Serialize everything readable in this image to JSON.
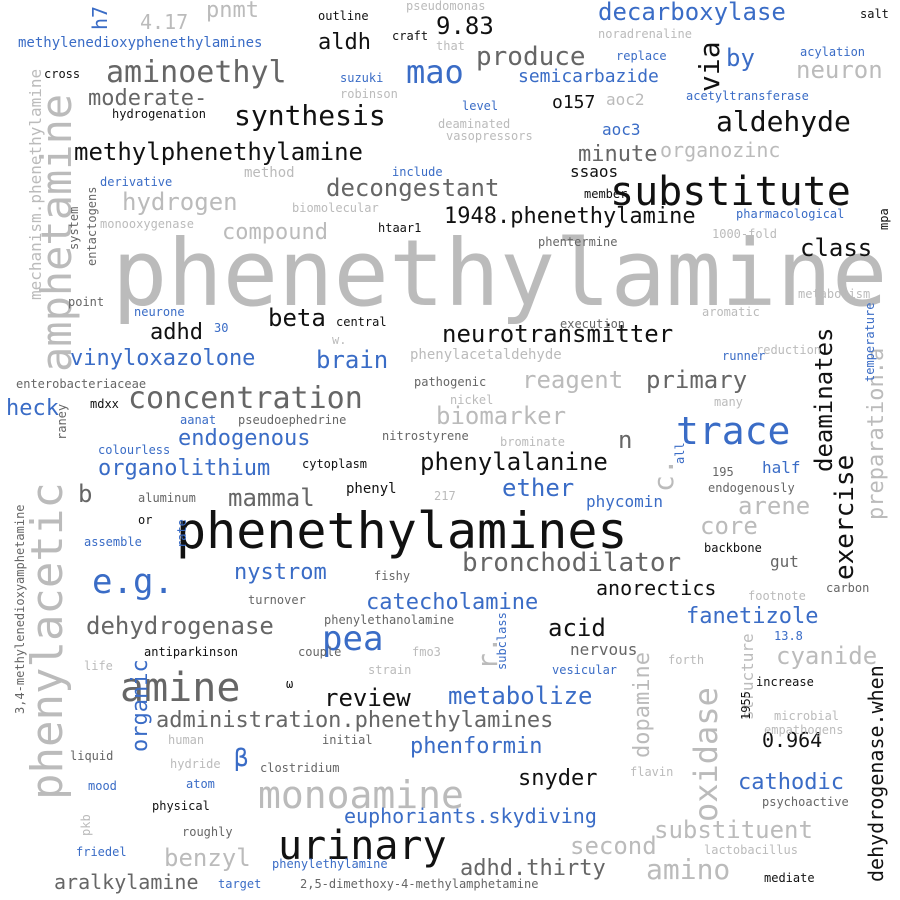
{
  "palette": {
    "black": "#111111",
    "dark": "#666666",
    "light": "#bbbbbb",
    "blue": "#3a6cc6"
  },
  "words": [
    {
      "t": "phenethylamine",
      "c": "light"
    },
    {
      "t": "phenethylamines",
      "c": "black"
    },
    {
      "t": "amphetamine",
      "c": "light"
    },
    {
      "t": "phenylacetic",
      "c": "light"
    },
    {
      "t": "substitute",
      "c": "black"
    },
    {
      "t": "amine",
      "c": "dark"
    },
    {
      "t": "monoamine",
      "c": "light"
    },
    {
      "t": "urinary",
      "c": "black"
    },
    {
      "t": "trace",
      "c": "blue"
    },
    {
      "t": "concentration",
      "c": "dark"
    },
    {
      "t": "e.g.",
      "c": "blue"
    },
    {
      "t": "pea",
      "c": "blue"
    },
    {
      "t": "oxidase",
      "c": "light"
    },
    {
      "t": "aminoethyl",
      "c": "dark"
    },
    {
      "t": "mao",
      "c": "blue"
    },
    {
      "t": "synthesis",
      "c": "black"
    },
    {
      "t": "methylphenethylamine",
      "c": "black"
    },
    {
      "t": "aldehyde",
      "c": "black"
    },
    {
      "t": "neurotransmitter",
      "c": "black"
    },
    {
      "t": "bronchodilator",
      "c": "dark"
    },
    {
      "t": "exercise",
      "c": "black"
    },
    {
      "t": "deaminates",
      "c": "black"
    },
    {
      "t": "decarboxylase",
      "c": "blue"
    },
    {
      "t": "produce",
      "c": "dark"
    },
    {
      "t": "decongestant",
      "c": "dark"
    },
    {
      "t": "hydrogen",
      "c": "light"
    },
    {
      "t": "compound",
      "c": "light"
    },
    {
      "t": "1948.phenethylamine",
      "c": "black"
    },
    {
      "t": "class",
      "c": "black"
    },
    {
      "t": "adhd",
      "c": "black"
    },
    {
      "t": "beta",
      "c": "black"
    },
    {
      "t": "brain",
      "c": "blue"
    },
    {
      "t": "vinyloxazolone",
      "c": "blue"
    },
    {
      "t": "reagent",
      "c": "light"
    },
    {
      "t": "primary",
      "c": "dark"
    },
    {
      "t": "biomarker",
      "c": "light"
    },
    {
      "t": "endogenous",
      "c": "blue"
    },
    {
      "t": "organolithium",
      "c": "blue"
    },
    {
      "t": "phenylalanine",
      "c": "black"
    },
    {
      "t": "ether",
      "c": "blue"
    },
    {
      "t": "mammal",
      "c": "dark"
    },
    {
      "t": "b",
      "c": "dark"
    },
    {
      "t": "n",
      "c": "dark"
    },
    {
      "t": "arene",
      "c": "light"
    },
    {
      "t": "core",
      "c": "light"
    },
    {
      "t": "heck",
      "c": "blue"
    },
    {
      "t": "catecholamine",
      "c": "blue"
    },
    {
      "t": "nystrom",
      "c": "blue"
    },
    {
      "t": "dehydrogenase",
      "c": "dark"
    },
    {
      "t": "acid",
      "c": "black"
    },
    {
      "t": "review",
      "c": "black"
    },
    {
      "t": "metabolize",
      "c": "blue"
    },
    {
      "t": "administration.phenethylamines",
      "c": "dark"
    },
    {
      "t": "phenformin",
      "c": "blue"
    },
    {
      "t": "snyder",
      "c": "black"
    },
    {
      "t": "euphoriants.skydiving",
      "c": "blue"
    },
    {
      "t": "substituent",
      "c": "light"
    },
    {
      "t": "second",
      "c": "light"
    },
    {
      "t": "adhd.thirty",
      "c": "dark"
    },
    {
      "t": "amino",
      "c": "light"
    },
    {
      "t": "benzyl",
      "c": "light"
    },
    {
      "t": "aralkylamine",
      "c": "dark"
    },
    {
      "t": "cathodic",
      "c": "blue"
    },
    {
      "t": "0.964",
      "c": "black"
    },
    {
      "t": "cyanide",
      "c": "light"
    },
    {
      "t": "fanetizole",
      "c": "blue"
    },
    {
      "t": "anorectics",
      "c": "black"
    },
    {
      "t": "dopamine",
      "c": "light"
    },
    {
      "t": "dehydrogenase.when",
      "c": "black"
    },
    {
      "t": "preparation.a",
      "c": "light"
    },
    {
      "t": "organic",
      "c": "blue"
    },
    {
      "t": "β",
      "c": "blue"
    },
    {
      "t": "r.",
      "c": "light"
    },
    {
      "t": "c.",
      "c": "light"
    },
    {
      "t": "via",
      "c": "black"
    },
    {
      "t": "by",
      "c": "blue"
    },
    {
      "t": "neuron",
      "c": "light"
    },
    {
      "t": "aldh",
      "c": "black"
    },
    {
      "t": "9.83",
      "c": "black"
    },
    {
      "t": "pnmt",
      "c": "light"
    },
    {
      "t": "4.17",
      "c": "light"
    },
    {
      "t": "h7",
      "c": "blue"
    },
    {
      "t": "moderate-",
      "c": "dark"
    },
    {
      "t": "semicarbazide",
      "c": "blue"
    },
    {
      "t": "o157",
      "c": "black"
    },
    {
      "t": "minute",
      "c": "dark"
    },
    {
      "t": "organozinc",
      "c": "light"
    },
    {
      "t": "aoc3",
      "c": "blue"
    },
    {
      "t": "aoc2",
      "c": "light"
    },
    {
      "t": "ssaos",
      "c": "black"
    },
    {
      "t": "phycomin",
      "c": "blue"
    },
    {
      "t": "half",
      "c": "blue"
    },
    {
      "t": "gut",
      "c": "dark"
    },
    {
      "t": "nervous",
      "c": "dark"
    },
    {
      "t": "structure",
      "c": "light"
    },
    {
      "t": "methylenedioxyphenethylamines",
      "c": "blue"
    },
    {
      "t": "outline",
      "c": "black"
    },
    {
      "t": "pseudomonas",
      "c": "light"
    },
    {
      "t": "craft",
      "c": "black"
    },
    {
      "t": "that",
      "c": "light"
    },
    {
      "t": "noradrenaline",
      "c": "light"
    },
    {
      "t": "salt",
      "c": "black"
    },
    {
      "t": "cross",
      "c": "black"
    },
    {
      "t": "suzuki",
      "c": "blue"
    },
    {
      "t": "robinson",
      "c": "light"
    },
    {
      "t": "replace",
      "c": "blue"
    },
    {
      "t": "acylation",
      "c": "blue"
    },
    {
      "t": "acetyltransferase",
      "c": "blue"
    },
    {
      "t": "hydrogenation",
      "c": "black"
    },
    {
      "t": "level",
      "c": "blue"
    },
    {
      "t": "deaminated",
      "c": "light"
    },
    {
      "t": "vasopressors",
      "c": "light"
    },
    {
      "t": "mechanism.phenethylamine",
      "c": "light"
    },
    {
      "t": "derivative",
      "c": "blue"
    },
    {
      "t": "method",
      "c": "light"
    },
    {
      "t": "include",
      "c": "blue"
    },
    {
      "t": "member",
      "c": "black"
    },
    {
      "t": "biomolecular",
      "c": "light"
    },
    {
      "t": "monooxygenase",
      "c": "light"
    },
    {
      "t": "htaar1",
      "c": "black"
    },
    {
      "t": "pharmacological",
      "c": "blue"
    },
    {
      "t": "mpa",
      "c": "black"
    },
    {
      "t": "1000-fold",
      "c": "light"
    },
    {
      "t": "phentermine",
      "c": "dark"
    },
    {
      "t": "system",
      "c": "dark"
    },
    {
      "t": "entactogens",
      "c": "dark"
    },
    {
      "t": "point",
      "c": "dark"
    },
    {
      "t": "neurone",
      "c": "blue"
    },
    {
      "t": "30",
      "c": "blue"
    },
    {
      "t": "central",
      "c": "black"
    },
    {
      "t": "w.",
      "c": "light"
    },
    {
      "t": "metabolism",
      "c": "light"
    },
    {
      "t": "aromatic",
      "c": "light"
    },
    {
      "t": "execution",
      "c": "dark"
    },
    {
      "t": "temperature",
      "c": "blue"
    },
    {
      "t": "reduction",
      "c": "light"
    },
    {
      "t": "runner",
      "c": "blue"
    },
    {
      "t": "phenylacetaldehyde",
      "c": "light"
    },
    {
      "t": "enterobacteriaceae",
      "c": "dark"
    },
    {
      "t": "pathogenic",
      "c": "dark"
    },
    {
      "t": "nickel",
      "c": "light"
    },
    {
      "t": "many",
      "c": "light"
    },
    {
      "t": "mdxx",
      "c": "black"
    },
    {
      "t": "aanat",
      "c": "blue"
    },
    {
      "t": "pseudoephedrine",
      "c": "dark"
    },
    {
      "t": "nitrostyrene",
      "c": "dark"
    },
    {
      "t": "brominate",
      "c": "light"
    },
    {
      "t": "raney",
      "c": "dark"
    },
    {
      "t": "colourless",
      "c": "blue"
    },
    {
      "t": "all",
      "c": "blue"
    },
    {
      "t": "cytoplasm",
      "c": "black"
    },
    {
      "t": "195",
      "c": "dark"
    },
    {
      "t": "endogenously",
      "c": "dark"
    },
    {
      "t": "phenyl",
      "c": "black"
    },
    {
      "t": "aluminum",
      "c": "dark"
    },
    {
      "t": "217",
      "c": "light"
    },
    {
      "t": "or",
      "c": "black"
    },
    {
      "t": "rate",
      "c": "blue"
    },
    {
      "t": "assemble",
      "c": "blue"
    },
    {
      "t": "backbone",
      "c": "black"
    },
    {
      "t": "fishy",
      "c": "dark"
    },
    {
      "t": "turnover",
      "c": "dark"
    },
    {
      "t": "carbon",
      "c": "dark"
    },
    {
      "t": "footnote",
      "c": "light"
    },
    {
      "t": "3,4-methylenedioxyamphetamine",
      "c": "dark"
    },
    {
      "t": "phenylethanolamine",
      "c": "dark"
    },
    {
      "t": "13.8",
      "c": "blue"
    },
    {
      "t": "antiparkinson",
      "c": "black"
    },
    {
      "t": "couple",
      "c": "dark"
    },
    {
      "t": "fmo3",
      "c": "light"
    },
    {
      "t": "subclass",
      "c": "blue"
    },
    {
      "t": "vesicular",
      "c": "blue"
    },
    {
      "t": "life",
      "c": "light"
    },
    {
      "t": "strain",
      "c": "light"
    },
    {
      "t": "forth",
      "c": "light"
    },
    {
      "t": "ω",
      "c": "black"
    },
    {
      "t": "increase",
      "c": "black"
    },
    {
      "t": "1955",
      "c": "black"
    },
    {
      "t": "microbial",
      "c": "light"
    },
    {
      "t": "empathogens",
      "c": "light"
    },
    {
      "t": "human",
      "c": "light"
    },
    {
      "t": "initial",
      "c": "dark"
    },
    {
      "t": "liquid",
      "c": "dark"
    },
    {
      "t": "hydride",
      "c": "light"
    },
    {
      "t": "clostridium",
      "c": "dark"
    },
    {
      "t": "flavin",
      "c": "light"
    },
    {
      "t": "mood",
      "c": "blue"
    },
    {
      "t": "atom",
      "c": "blue"
    },
    {
      "t": "physical",
      "c": "black"
    },
    {
      "t": "psychoactive",
      "c": "dark"
    },
    {
      "t": "pkb",
      "c": "light"
    },
    {
      "t": "roughly",
      "c": "dark"
    },
    {
      "t": "lactobacillus",
      "c": "light"
    },
    {
      "t": "friedel",
      "c": "blue"
    },
    {
      "t": "phenylethylamine",
      "c": "blue"
    },
    {
      "t": "target",
      "c": "blue"
    },
    {
      "t": "2,5-dimethoxy-4-methylamphetamine",
      "c": "dark"
    },
    {
      "t": "mediate",
      "c": "black"
    }
  ]
}
